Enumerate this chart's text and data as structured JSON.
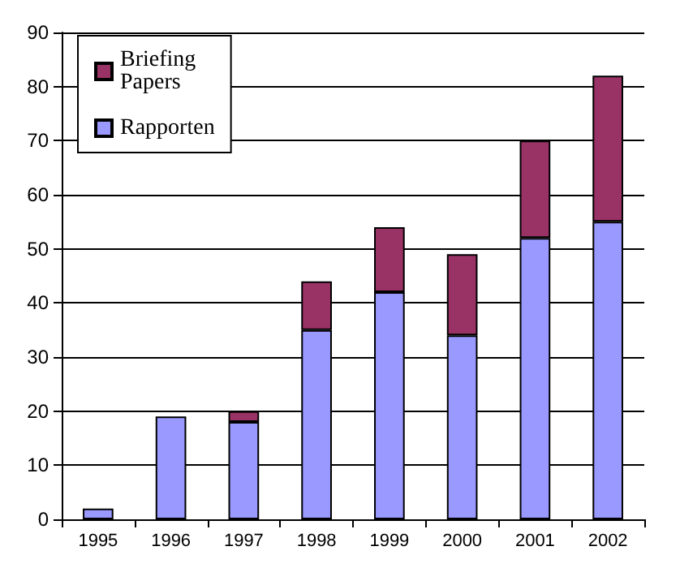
{
  "chart_data": {
    "type": "bar",
    "stacked": true,
    "categories": [
      "1995",
      "1996",
      "1997",
      "1998",
      "1999",
      "2000",
      "2001",
      "2002"
    ],
    "series": [
      {
        "name": "Rapporten",
        "color": "#9999ff",
        "values": [
          2,
          19,
          18,
          35,
          42,
          34,
          52,
          55
        ]
      },
      {
        "name": "Briefing Papers",
        "color": "#993366",
        "values": [
          0,
          0,
          2,
          9,
          12,
          15,
          18,
          27
        ]
      }
    ],
    "ylim": [
      0,
      90
    ],
    "yticks": [
      0,
      10,
      20,
      30,
      40,
      50,
      60,
      70,
      80,
      90
    ],
    "grid": "y",
    "legend": "top left"
  }
}
